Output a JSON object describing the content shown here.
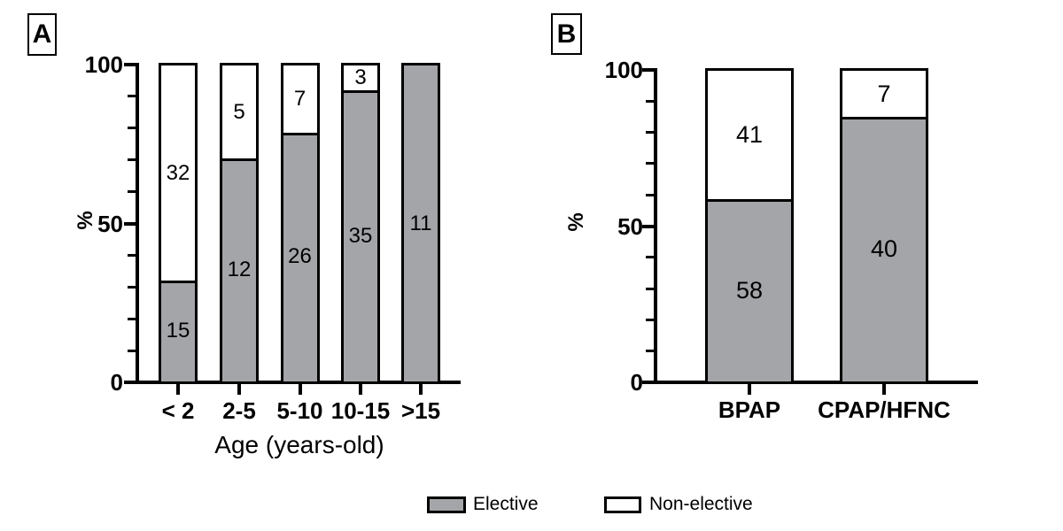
{
  "colors": {
    "line": "#000000",
    "background": "#ffffff",
    "elective_fill": "#a4a5a9",
    "non_elective_fill": "#ffffff"
  },
  "legend": {
    "items": [
      {
        "label": "Elective",
        "fill": "#a4a5a9"
      },
      {
        "label": "Non-elective",
        "fill": "#ffffff"
      }
    ]
  },
  "chart_data": [
    {
      "panel_label": "A",
      "type": "bar",
      "stacked": true,
      "categories": [
        "< 2",
        "2-5",
        "5-10",
        "10-15",
        ">15"
      ],
      "series": [
        {
          "name": "Elective",
          "fill": "#a4a5a9",
          "counts": [
            15,
            12,
            26,
            35,
            11
          ]
        },
        {
          "name": "Non-elective",
          "fill": "#ffffff",
          "counts": [
            32,
            5,
            7,
            3,
            0
          ]
        }
      ],
      "segment_note": "segment height = count / category total, expressed as % (0-100)",
      "xlabel": "Age (years-old)",
      "ylabel": "%",
      "ylim": [
        0,
        100
      ],
      "yticks": [
        0,
        50,
        100
      ],
      "ytick_minor_step": 10,
      "grid": false,
      "legend_position": "bottom"
    },
    {
      "panel_label": "B",
      "type": "bar",
      "stacked": true,
      "categories": [
        "BPAP",
        "CPAP/HFNC"
      ],
      "series": [
        {
          "name": "Elective",
          "fill": "#a4a5a9",
          "counts": [
            58,
            40
          ]
        },
        {
          "name": "Non-elective",
          "fill": "#ffffff",
          "counts": [
            41,
            7
          ]
        }
      ],
      "segment_note": "segment height = count / category total, expressed as % (0-100)",
      "xlabel": "",
      "ylabel": "%",
      "ylim": [
        0,
        100
      ],
      "yticks": [
        0,
        50,
        100
      ],
      "ytick_minor_step": 10,
      "grid": false,
      "legend_position": "bottom"
    }
  ]
}
